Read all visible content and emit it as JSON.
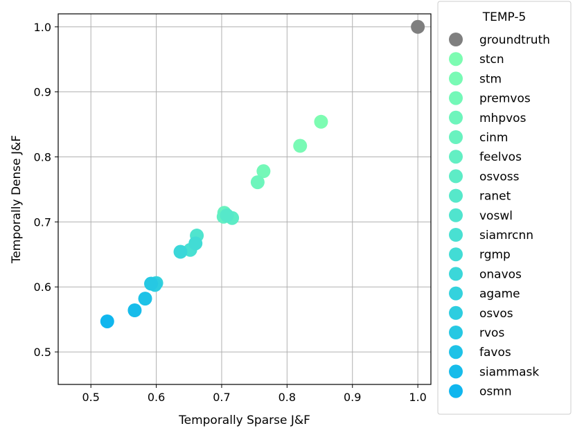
{
  "chart_data": {
    "type": "scatter",
    "xlabel": "Temporally Sparse J&F",
    "ylabel": "Temporally Dense J&F",
    "xlim": [
      0.45,
      1.02
    ],
    "ylim": [
      0.45,
      1.02
    ],
    "xticks": [
      "0.5",
      "0.6",
      "0.7",
      "0.8",
      "0.9",
      "1.0"
    ],
    "yticks": [
      "0.5",
      "0.6",
      "0.7",
      "0.8",
      "0.9",
      "1.0"
    ],
    "grid": true,
    "legend": {
      "title": "TEMP-5",
      "placement": "outside-right"
    },
    "series": [
      {
        "name": "groundtruth",
        "color": "#7f7f7f",
        "x": 1.0,
        "y": 1.0
      },
      {
        "name": "stcn",
        "color": "#7dfcb2",
        "x": 0.852,
        "y": 0.854
      },
      {
        "name": "stm",
        "color": "#79fab5",
        "x": 0.82,
        "y": 0.817
      },
      {
        "name": "premvos",
        "color": "#74f8b8",
        "x": 0.764,
        "y": 0.778
      },
      {
        "name": "mhpvos",
        "color": "#6ef5bc",
        "x": 0.755,
        "y": 0.761
      },
      {
        "name": "cinm",
        "color": "#69f2bf",
        "x": 0.704,
        "y": 0.714
      },
      {
        "name": "feelvos",
        "color": "#63efc3",
        "x": 0.703,
        "y": 0.708
      },
      {
        "name": "osvoss",
        "color": "#5decc6",
        "x": 0.716,
        "y": 0.706
      },
      {
        "name": "ranet",
        "color": "#56e8ca",
        "x": 0.708,
        "y": 0.71
      },
      {
        "name": "voswl",
        "color": "#50e4ce",
        "x": 0.662,
        "y": 0.679
      },
      {
        "name": "siamrcnn",
        "color": "#49e0d2",
        "x": 0.652,
        "y": 0.657
      },
      {
        "name": "rgmp",
        "color": "#42dcd5",
        "x": 0.66,
        "y": 0.667
      },
      {
        "name": "onavos",
        "color": "#3bd7d9",
        "x": 0.637,
        "y": 0.654
      },
      {
        "name": "agame",
        "color": "#34d2dd",
        "x": 0.6,
        "y": 0.606
      },
      {
        "name": "osvos",
        "color": "#2dcde0",
        "x": 0.598,
        "y": 0.603
      },
      {
        "name": "rvos",
        "color": "#26c8e3",
        "x": 0.592,
        "y": 0.605
      },
      {
        "name": "favos",
        "color": "#1ec2e7",
        "x": 0.583,
        "y": 0.582
      },
      {
        "name": "siammask",
        "color": "#17bcea",
        "x": 0.567,
        "y": 0.564
      },
      {
        "name": "osmn",
        "color": "#10b6ee",
        "x": 0.525,
        "y": 0.547
      }
    ]
  }
}
